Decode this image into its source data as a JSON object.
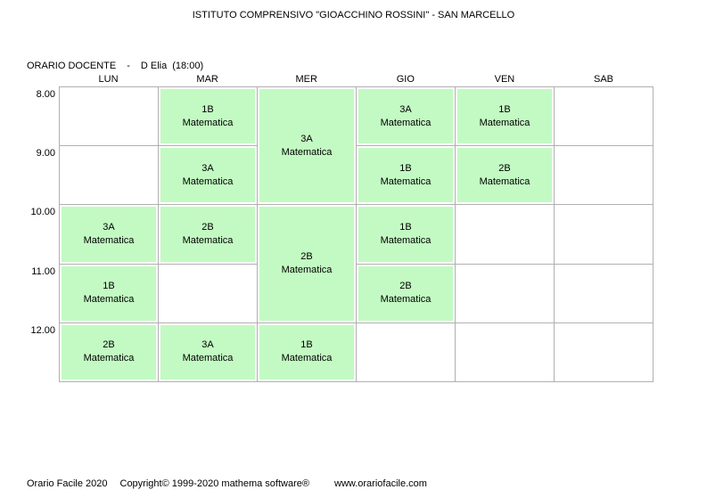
{
  "title": "ISTITUTO COMPRENSIVO \"GIOACCHINO ROSSINI\" - SAN MARCELLO",
  "header": {
    "label": "ORARIO DOCENTE",
    "separator": "-",
    "teacher": "D Elia",
    "hours": "(18:00)"
  },
  "days": [
    "LUN",
    "MAR",
    "MER",
    "GIO",
    "VEN",
    "SAB"
  ],
  "times": [
    "8.00",
    "9.00",
    "10.00",
    "11.00",
    "12.00"
  ],
  "lessons": {
    "lun_10": {
      "class": "3A",
      "subject": "Matematica"
    },
    "lun_11": {
      "class": "1B",
      "subject": "Matematica"
    },
    "lun_12": {
      "class": "2B",
      "subject": "Matematica"
    },
    "mar_8": {
      "class": "1B",
      "subject": "Matematica"
    },
    "mar_9": {
      "class": "3A",
      "subject": "Matematica"
    },
    "mar_10": {
      "class": "2B",
      "subject": "Matematica"
    },
    "mar_12": {
      "class": "3A",
      "subject": "Matematica"
    },
    "mer_8_10": {
      "class": "3A",
      "subject": "Matematica"
    },
    "mer_10_12": {
      "class": "2B",
      "subject": "Matematica"
    },
    "mer_12": {
      "class": "1B",
      "subject": "Matematica"
    },
    "gio_8": {
      "class": "3A",
      "subject": "Matematica"
    },
    "gio_9": {
      "class": "1B",
      "subject": "Matematica"
    },
    "gio_10": {
      "class": "1B",
      "subject": "Matematica"
    },
    "gio_11": {
      "class": "2B",
      "subject": "Matematica"
    },
    "ven_8": {
      "class": "1B",
      "subject": "Matematica"
    },
    "ven_9": {
      "class": "2B",
      "subject": "Matematica"
    }
  },
  "footer": {
    "app": "Orario Facile 2020",
    "copyright": "Copyright© 1999-2020 mathema software®",
    "url": "www.orariofacile.com"
  },
  "colors": {
    "lesson_green": "#C3FAC3",
    "grid_border": "#B0B0B0"
  }
}
